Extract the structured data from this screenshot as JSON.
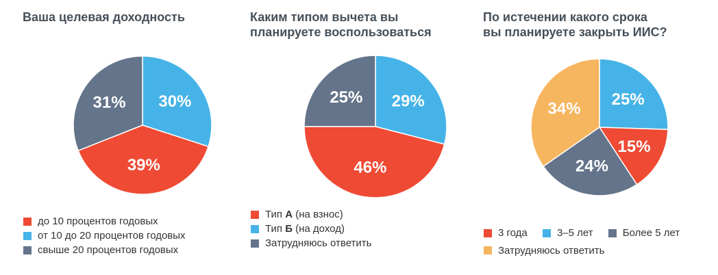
{
  "colors": {
    "red": "#ef4a34",
    "blue": "#45b3e7",
    "gray": "#64748a",
    "orange": "#f6b55f"
  },
  "chart_data": [
    {
      "type": "pie",
      "title": "Ваша целевая доходность",
      "slices": [
        {
          "name": "до 10 процентов годовых",
          "value": 39,
          "label": "39%",
          "color": "red"
        },
        {
          "name": "от 10 до 20 процентов годовых",
          "value": 30,
          "label": "30%",
          "color": "blue"
        },
        {
          "name": "свыше 20 процентов годовых",
          "value": 31,
          "label": "31%",
          "color": "gray"
        }
      ],
      "slice_order": [
        1,
        0,
        2
      ]
    },
    {
      "type": "pie",
      "title": "Каким типом вычета вы\nпланируете воспользоваться",
      "slices": [
        {
          "name": "Тип А (на взнос)",
          "value": 46,
          "label": "46%",
          "color": "red",
          "legend_pre": "Тип ",
          "legend_bold": "А",
          "legend_post": " (на взнос)"
        },
        {
          "name": "Тип Б (на доход)",
          "value": 29,
          "label": "29%",
          "color": "blue",
          "legend_pre": "Тип ",
          "legend_bold": "Б",
          "legend_post": " (на доход)"
        },
        {
          "name": "Затрудняюсь ответить",
          "value": 25,
          "label": "25%",
          "color": "gray",
          "legend_pre": "Затрудняюсь ответить",
          "legend_bold": "",
          "legend_post": ""
        }
      ],
      "slice_order": [
        1,
        0,
        2
      ]
    },
    {
      "type": "pie",
      "title": "По истечении какого срока\nвы планируете закрыть ИИС?",
      "slices": [
        {
          "name": "3 года",
          "value": 15,
          "label": "15%",
          "color": "red"
        },
        {
          "name": "3–5 лет",
          "value": 25,
          "label": "25%",
          "color": "blue"
        },
        {
          "name": "Более 5 лет",
          "value": 24,
          "label": "24%",
          "color": "gray"
        },
        {
          "name": "Затрудняюсь ответить",
          "value": 34,
          "label": "34%",
          "color": "orange"
        }
      ],
      "slice_order": [
        1,
        0,
        2,
        3
      ]
    }
  ]
}
